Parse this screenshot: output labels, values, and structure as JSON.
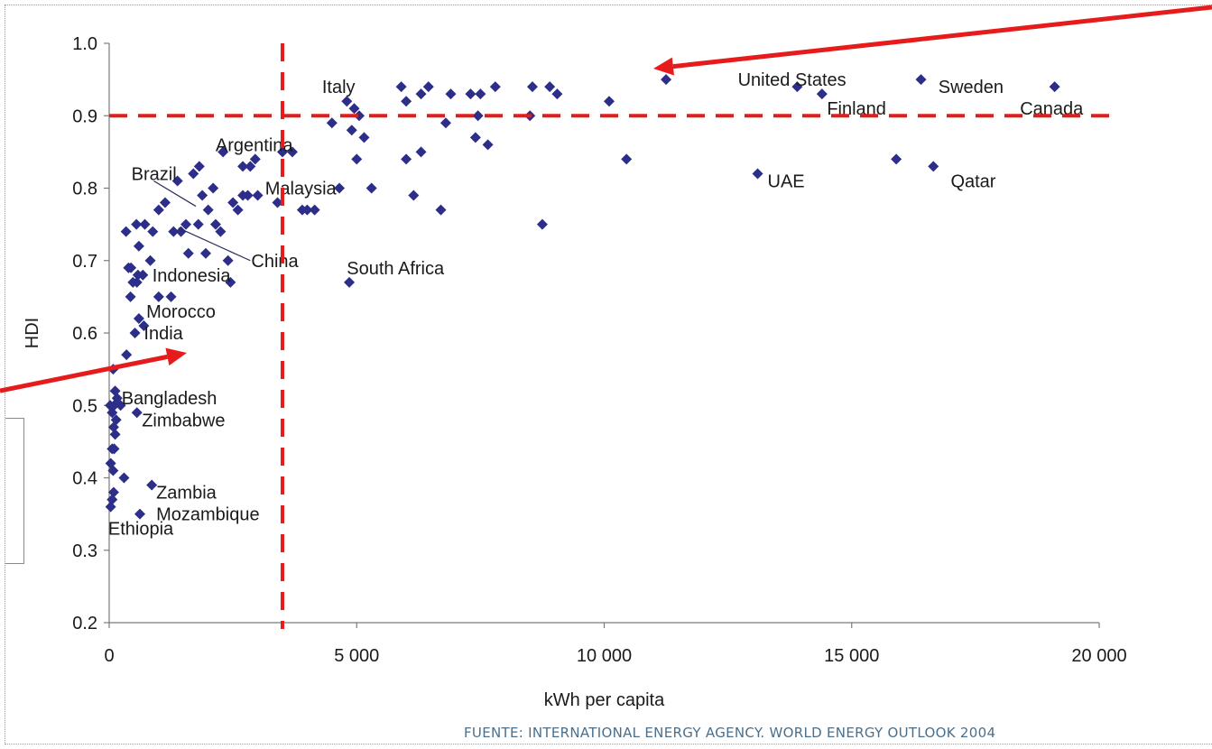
{
  "source_note": "FUENTE: INTERNATIONAL ENERGY AGENCY. WORLD ENERGY OUTLOOK 2004",
  "colors": {
    "marker": "#2d2d8a",
    "reference_line": "#e61b1b",
    "axis": "#7a7a7a",
    "text": "#1a1a1a"
  },
  "chart_data": {
    "type": "scatter",
    "title": "",
    "xlabel": "kWh per capita",
    "ylabel": "HDI",
    "xlim": [
      0,
      20000
    ],
    "ylim": [
      0.2,
      1.0
    ],
    "x_ticks": [
      0,
      5000,
      10000,
      15000,
      20000
    ],
    "x_tick_labels": [
      "0",
      "5 000",
      "10 000",
      "15 000",
      "20 000"
    ],
    "y_ticks": [
      0.2,
      0.3,
      0.4,
      0.5,
      0.6,
      0.7,
      0.8,
      0.9,
      1.0
    ],
    "y_tick_labels": [
      "0.2",
      "0.3",
      "0.4",
      "0.5",
      "0.6",
      "0.7",
      "0.8",
      "0.9",
      "1.0"
    ],
    "grid": false,
    "legend": "none",
    "reference_lines": {
      "vertical_x": 3500,
      "horizontal_y": 0.9
    },
    "points": [
      {
        "x": 30,
        "y": 0.36
      },
      {
        "x": 60,
        "y": 0.37
      },
      {
        "x": 90,
        "y": 0.38
      },
      {
        "x": 30,
        "y": 0.42
      },
      {
        "x": 80,
        "y": 0.41
      },
      {
        "x": 60,
        "y": 0.44
      },
      {
        "x": 100,
        "y": 0.44
      },
      {
        "x": 120,
        "y": 0.46
      },
      {
        "x": 90,
        "y": 0.47
      },
      {
        "x": 140,
        "y": 0.48
      },
      {
        "x": 20,
        "y": 0.5
      },
      {
        "x": 60,
        "y": 0.49
      },
      {
        "x": 100,
        "y": 0.5
      },
      {
        "x": 160,
        "y": 0.51
      },
      {
        "x": 230,
        "y": 0.5
      },
      {
        "x": 120,
        "y": 0.52
      },
      {
        "x": 80,
        "y": 0.55
      },
      {
        "x": 300,
        "y": 0.4
      },
      {
        "x": 350,
        "y": 0.57
      },
      {
        "x": 620,
        "y": 0.35
      },
      {
        "x": 860,
        "y": 0.39
      },
      {
        "x": 560,
        "y": 0.49
      },
      {
        "x": 520,
        "y": 0.6
      },
      {
        "x": 700,
        "y": 0.61
      },
      {
        "x": 600,
        "y": 0.62
      },
      {
        "x": 430,
        "y": 0.65
      },
      {
        "x": 480,
        "y": 0.67
      },
      {
        "x": 440,
        "y": 0.69
      },
      {
        "x": 390,
        "y": 0.69
      },
      {
        "x": 560,
        "y": 0.67
      },
      {
        "x": 580,
        "y": 0.68
      },
      {
        "x": 680,
        "y": 0.68
      },
      {
        "x": 600,
        "y": 0.72
      },
      {
        "x": 340,
        "y": 0.74
      },
      {
        "x": 550,
        "y": 0.75
      },
      {
        "x": 720,
        "y": 0.75
      },
      {
        "x": 880,
        "y": 0.74
      },
      {
        "x": 1000,
        "y": 0.65
      },
      {
        "x": 1250,
        "y": 0.65
      },
      {
        "x": 830,
        "y": 0.7
      },
      {
        "x": 1000,
        "y": 0.77
      },
      {
        "x": 1130,
        "y": 0.78
      },
      {
        "x": 1300,
        "y": 0.74
      },
      {
        "x": 1380,
        "y": 0.81
      },
      {
        "x": 1450,
        "y": 0.74
      },
      {
        "x": 1550,
        "y": 0.75
      },
      {
        "x": 1700,
        "y": 0.82
      },
      {
        "x": 1820,
        "y": 0.83
      },
      {
        "x": 1600,
        "y": 0.71
      },
      {
        "x": 1950,
        "y": 0.71
      },
      {
        "x": 1800,
        "y": 0.75
      },
      {
        "x": 1880,
        "y": 0.79
      },
      {
        "x": 2000,
        "y": 0.77
      },
      {
        "x": 2100,
        "y": 0.8
      },
      {
        "x": 2150,
        "y": 0.75
      },
      {
        "x": 2250,
        "y": 0.74
      },
      {
        "x": 2300,
        "y": 0.85
      },
      {
        "x": 2400,
        "y": 0.7
      },
      {
        "x": 2450,
        "y": 0.67
      },
      {
        "x": 2500,
        "y": 0.78
      },
      {
        "x": 2600,
        "y": 0.77
      },
      {
        "x": 2700,
        "y": 0.79
      },
      {
        "x": 2700,
        "y": 0.83
      },
      {
        "x": 2800,
        "y": 0.79
      },
      {
        "x": 2850,
        "y": 0.83
      },
      {
        "x": 2950,
        "y": 0.84
      },
      {
        "x": 3000,
        "y": 0.79
      },
      {
        "x": 3400,
        "y": 0.78
      },
      {
        "x": 3500,
        "y": 0.85
      },
      {
        "x": 3700,
        "y": 0.85
      },
      {
        "x": 3900,
        "y": 0.77
      },
      {
        "x": 4000,
        "y": 0.77
      },
      {
        "x": 4150,
        "y": 0.77
      },
      {
        "x": 4500,
        "y": 0.89
      },
      {
        "x": 4650,
        "y": 0.8
      },
      {
        "x": 4800,
        "y": 0.92
      },
      {
        "x": 4900,
        "y": 0.88
      },
      {
        "x": 4950,
        "y": 0.91
      },
      {
        "x": 5000,
        "y": 0.84
      },
      {
        "x": 5050,
        "y": 0.9
      },
      {
        "x": 5150,
        "y": 0.87
      },
      {
        "x": 5300,
        "y": 0.8
      },
      {
        "x": 4850,
        "y": 0.67
      },
      {
        "x": 5900,
        "y": 0.94
      },
      {
        "x": 6000,
        "y": 0.92
      },
      {
        "x": 6000,
        "y": 0.84
      },
      {
        "x": 6150,
        "y": 0.79
      },
      {
        "x": 6300,
        "y": 0.85
      },
      {
        "x": 6300,
        "y": 0.93
      },
      {
        "x": 6450,
        "y": 0.94
      },
      {
        "x": 6700,
        "y": 0.77
      },
      {
        "x": 6800,
        "y": 0.89
      },
      {
        "x": 6900,
        "y": 0.93
      },
      {
        "x": 7300,
        "y": 0.93
      },
      {
        "x": 7400,
        "y": 0.87
      },
      {
        "x": 7450,
        "y": 0.9
      },
      {
        "x": 7500,
        "y": 0.93
      },
      {
        "x": 7650,
        "y": 0.86
      },
      {
        "x": 7800,
        "y": 0.94
      },
      {
        "x": 8500,
        "y": 0.9
      },
      {
        "x": 8550,
        "y": 0.94
      },
      {
        "x": 8750,
        "y": 0.75
      },
      {
        "x": 8900,
        "y": 0.94
      },
      {
        "x": 9050,
        "y": 0.93
      },
      {
        "x": 10100,
        "y": 0.92
      },
      {
        "x": 10450,
        "y": 0.84
      },
      {
        "x": 11250,
        "y": 0.95
      },
      {
        "x": 13100,
        "y": 0.82
      },
      {
        "x": 13900,
        "y": 0.94
      },
      {
        "x": 14400,
        "y": 0.93
      },
      {
        "x": 15900,
        "y": 0.84
      },
      {
        "x": 16400,
        "y": 0.95
      },
      {
        "x": 16650,
        "y": 0.83
      },
      {
        "x": 19100,
        "y": 0.94
      }
    ],
    "annotations": [
      {
        "text": "Italy",
        "x": 4300,
        "y": 0.94
      },
      {
        "text": "United States",
        "x": 12700,
        "y": 0.95
      },
      {
        "text": "Sweden",
        "x": 16750,
        "y": 0.94
      },
      {
        "text": "Finland",
        "x": 14500,
        "y": 0.91
      },
      {
        "text": "Canada",
        "x": 18400,
        "y": 0.91
      },
      {
        "text": "Argentina",
        "x": 2150,
        "y": 0.86
      },
      {
        "text": "Brazil",
        "x": 450,
        "y": 0.82
      },
      {
        "text": "Malaysia",
        "x": 3150,
        "y": 0.8
      },
      {
        "text": "UAE",
        "x": 13300,
        "y": 0.81
      },
      {
        "text": "Qatar",
        "x": 17000,
        "y": 0.81
      },
      {
        "text": "China",
        "x": 2870,
        "y": 0.7
      },
      {
        "text": "South Africa",
        "x": 4800,
        "y": 0.69
      },
      {
        "text": "Indonesia",
        "x": 870,
        "y": 0.68
      },
      {
        "text": "Morocco",
        "x": 750,
        "y": 0.63
      },
      {
        "text": "India",
        "x": 700,
        "y": 0.6
      },
      {
        "text": "Bangladesh",
        "x": 250,
        "y": 0.51
      },
      {
        "text": "Zimbabwe",
        "x": 660,
        "y": 0.48
      },
      {
        "text": "Zambia",
        "x": 950,
        "y": 0.38
      },
      {
        "text": "Mozambique",
        "x": 950,
        "y": 0.35
      },
      {
        "text": "Ethiopia",
        "x": -20,
        "y": 0.33
      }
    ]
  }
}
